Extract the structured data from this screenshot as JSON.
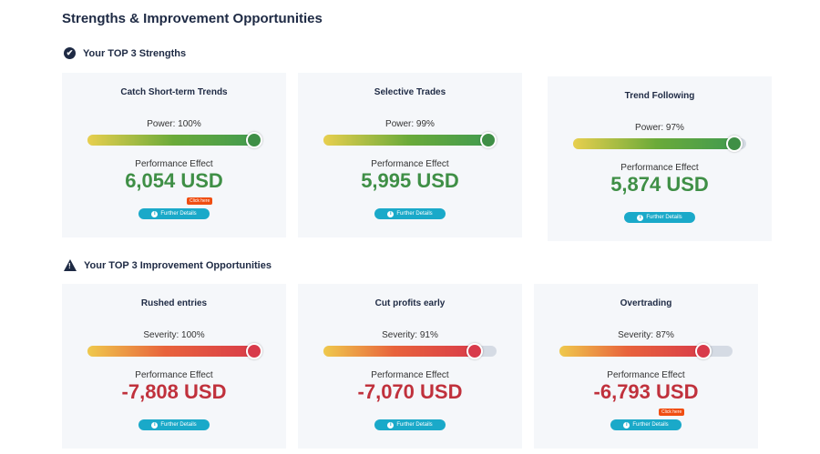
{
  "title": "Strengths & Improvement Opportunities",
  "strengths": {
    "heading": "Your TOP 3 Strengths",
    "cards": [
      {
        "title": "Catch Short-term Trends",
        "level_label": "Power: 100%",
        "level": 100,
        "effect_label": "Performance Effect",
        "value": "6,054 USD",
        "button": "Further Details",
        "tooltip": "Click here"
      },
      {
        "title": "Selective Trades",
        "level_label": "Power: 99%",
        "level": 99,
        "effect_label": "Performance Effect",
        "value": "5,995 USD",
        "button": "Further Details"
      },
      {
        "title": "Trend Following",
        "level_label": "Power: 97%",
        "level": 97,
        "effect_label": "Performance Effect",
        "value": "5,874 USD",
        "button": "Further Details"
      }
    ]
  },
  "improvements": {
    "heading": "Your TOP 3 Improvement Opportunities",
    "cards": [
      {
        "title": "Rushed entries",
        "level_label": "Severity: 100%",
        "level": 100,
        "effect_label": "Performance Effect",
        "value": "-7,808 USD",
        "button": "Further Details"
      },
      {
        "title": "Cut profits early",
        "level_label": "Severity: 91%",
        "level": 91,
        "effect_label": "Performance Effect",
        "value": "-7,070 USD",
        "button": "Further Details"
      },
      {
        "title": "Overtrading",
        "level_label": "Severity: 87%",
        "level": 87,
        "effect_label": "Performance Effect",
        "value": "-6,793 USD",
        "button": "Further Details",
        "tooltip": "Click here"
      }
    ]
  },
  "colors": {
    "green": "#3f8f46",
    "red": "#c0313c",
    "button": "#1aa9c9"
  }
}
